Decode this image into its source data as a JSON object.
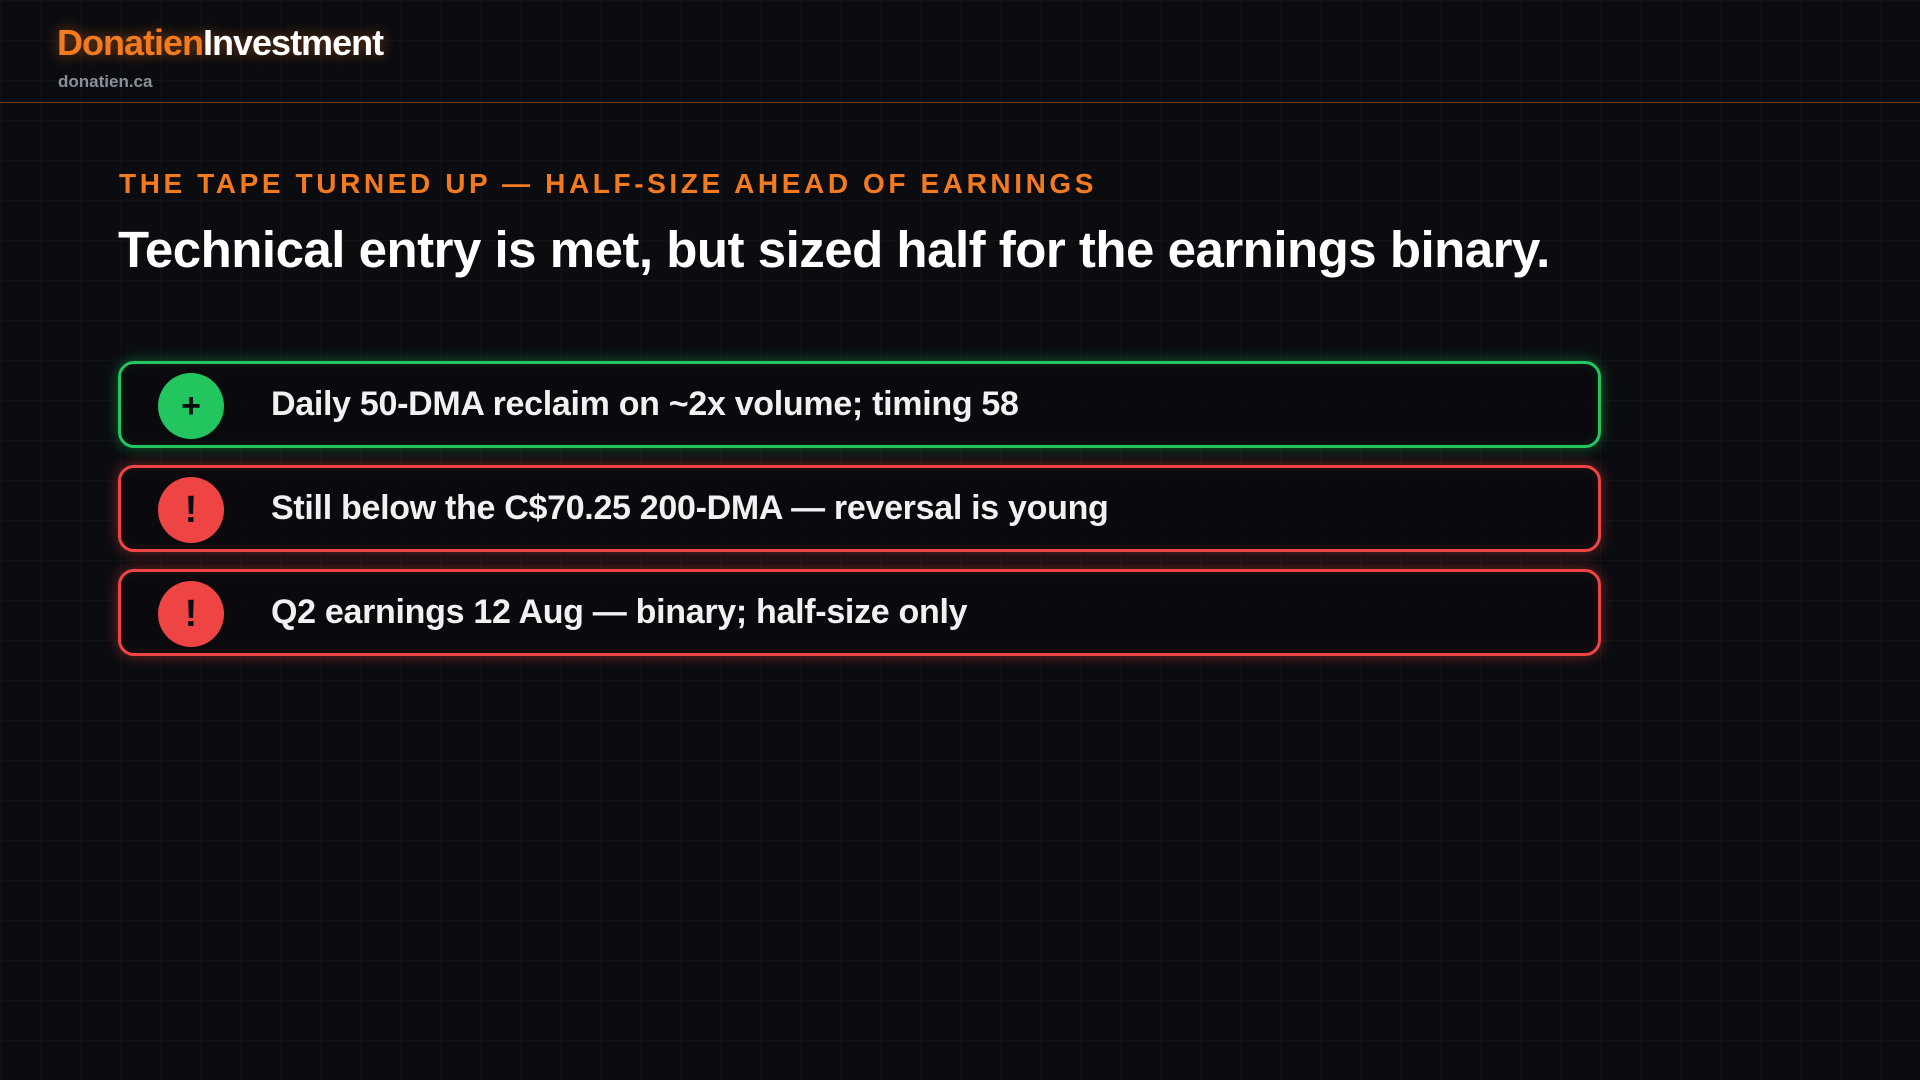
{
  "header": {
    "brand_primary": "Donatien",
    "brand_secondary": "Investment",
    "domain": "donatien.ca"
  },
  "slide": {
    "kicker": "THE TAPE TURNED UP — HALF-SIZE AHEAD OF EARNINGS",
    "headline": "Technical entry is met, but sized half for the earnings binary."
  },
  "items": [
    {
      "icon": "+",
      "icon_name": "plus-icon",
      "status": "positive",
      "color": "#22c55e",
      "text": "Daily 50-DMA reclaim on ~2x volume; timing 58"
    },
    {
      "icon": "!",
      "icon_name": "warning-icon",
      "status": "negative",
      "color": "#ef4444",
      "text": "Still below the C$70.25 200-DMA — reversal is young"
    },
    {
      "icon": "!",
      "icon_name": "warning-icon",
      "status": "negative",
      "color": "#ef4444",
      "text": "Q2 earnings 12 Aug — binary; half-size only"
    }
  ],
  "colors": {
    "accent": "#f47a1f",
    "background": "#0b0c10",
    "positive": "#22c55e",
    "negative": "#ef4444"
  }
}
